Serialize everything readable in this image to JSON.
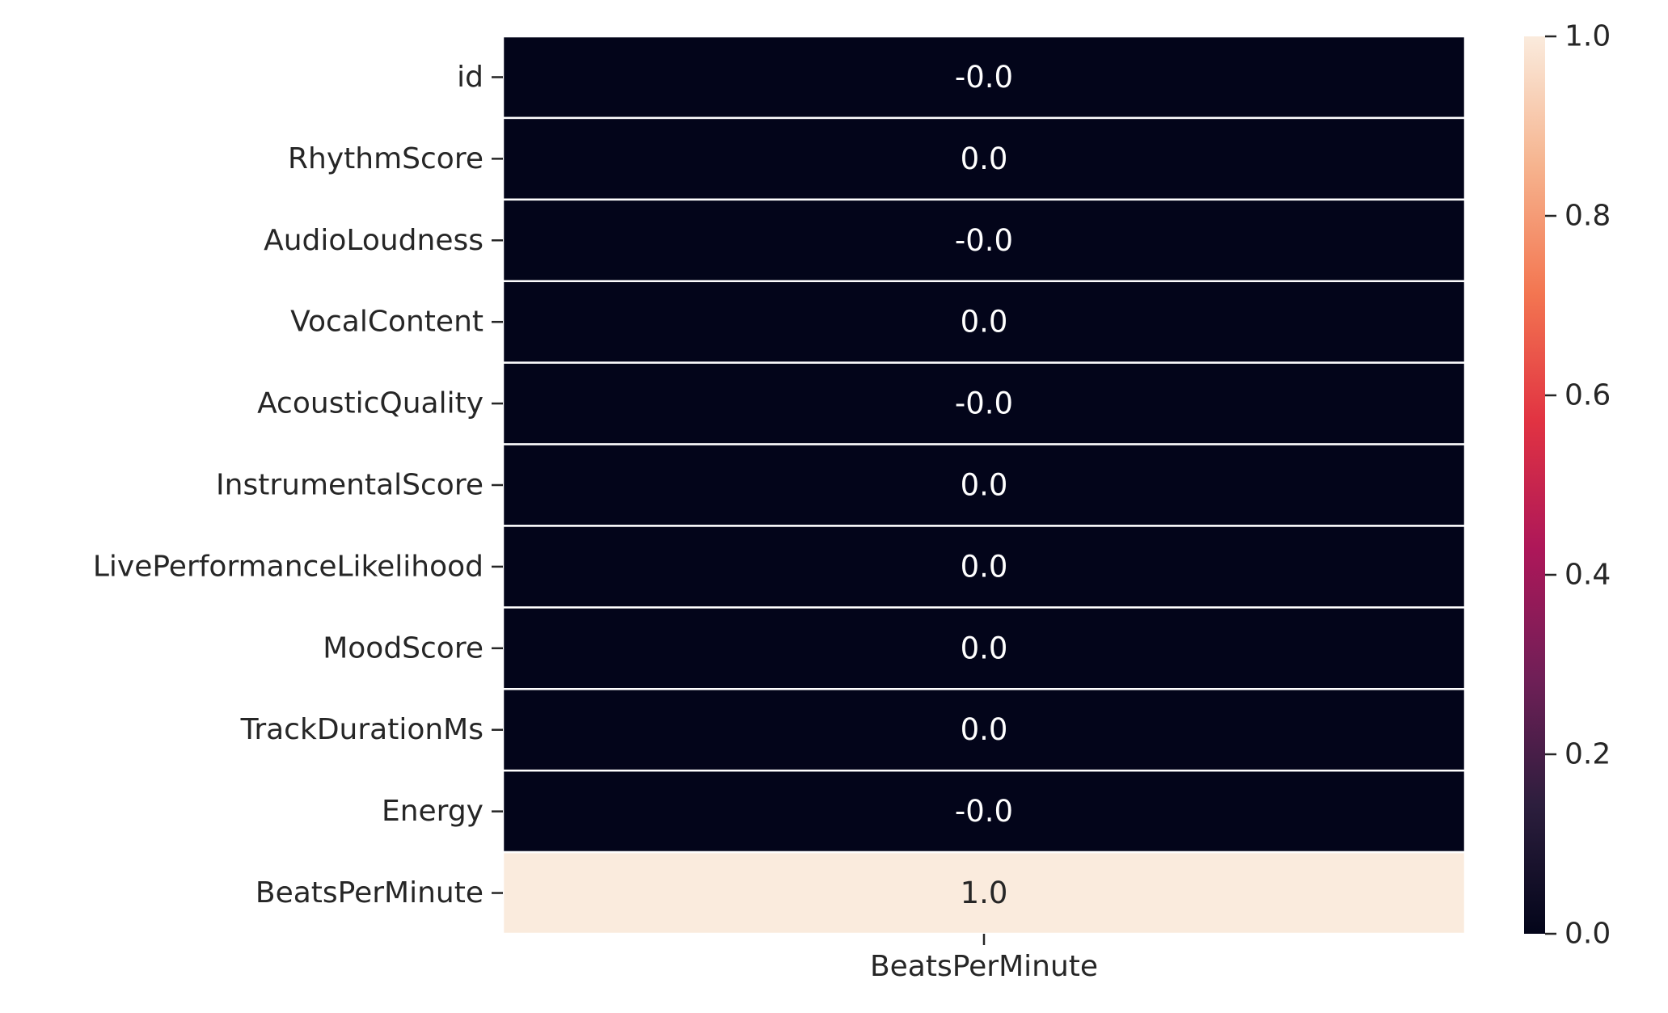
{
  "chart_data": {
    "type": "heatmap",
    "title": "",
    "xlabel": "",
    "ylabel": "",
    "columns": [
      "BeatsPerMinute"
    ],
    "rows": [
      "id",
      "RhythmScore",
      "AudioLoudness",
      "VocalContent",
      "AcousticQuality",
      "InstrumentalScore",
      "LivePerformanceLikelihood",
      "MoodScore",
      "TrackDurationMs",
      "Energy",
      "BeatsPerMinute"
    ],
    "values": [
      [
        -0.0
      ],
      [
        0.0
      ],
      [
        -0.0
      ],
      [
        0.0
      ],
      [
        -0.0
      ],
      [
        0.0
      ],
      [
        0.0
      ],
      [
        0.0
      ],
      [
        0.0
      ],
      [
        -0.0
      ],
      [
        1.0
      ]
    ],
    "annotations": [
      "-0.0",
      "0.0",
      "-0.0",
      "0.0",
      "-0.0",
      "0.0",
      "0.0",
      "0.0",
      "0.0",
      "-0.0",
      "1.0"
    ],
    "colorbar": {
      "range": [
        0.0,
        1.0
      ],
      "ticks": [
        "0.0",
        "0.2",
        "0.4",
        "0.6",
        "0.8",
        "1.0"
      ],
      "colormap": "rocket",
      "stops": [
        "#03051a",
        "#2c1e3d",
        "#701f57",
        "#ad1759",
        "#e13342",
        "#f37651",
        "#f6b48f",
        "#faebdd"
      ]
    },
    "grid": false,
    "cell_separator_color": "#ffffff"
  }
}
